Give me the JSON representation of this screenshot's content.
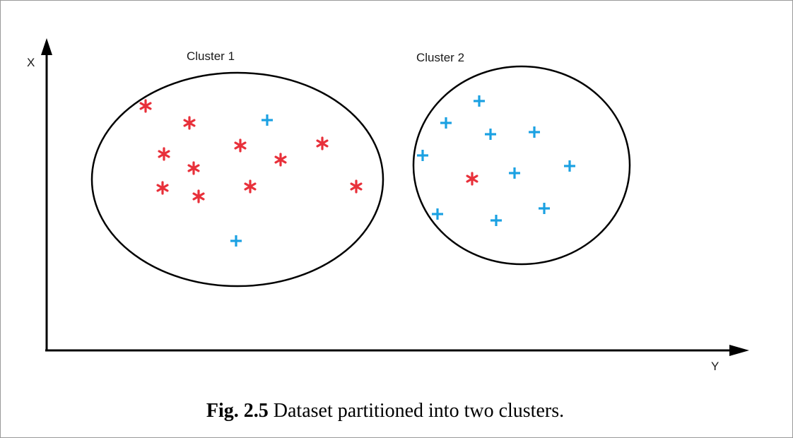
{
  "axes": {
    "x_label": "X",
    "y_label": "Y"
  },
  "clusters": [
    {
      "label": "Cluster 1",
      "points": [
        {
          "type": "star"
        },
        {
          "type": "star"
        },
        {
          "type": "plus"
        },
        {
          "type": "star"
        },
        {
          "type": "star"
        },
        {
          "type": "star"
        },
        {
          "type": "star"
        },
        {
          "type": "star"
        },
        {
          "type": "star"
        },
        {
          "type": "star"
        },
        {
          "type": "star"
        },
        {
          "type": "star"
        },
        {
          "type": "plus"
        }
      ]
    },
    {
      "label": "Cluster 2",
      "points": [
        {
          "type": "plus"
        },
        {
          "type": "plus"
        },
        {
          "type": "plus"
        },
        {
          "type": "plus"
        },
        {
          "type": "plus"
        },
        {
          "type": "plus"
        },
        {
          "type": "plus"
        },
        {
          "type": "star"
        },
        {
          "type": "plus"
        },
        {
          "type": "plus"
        },
        {
          "type": "plus"
        }
      ]
    }
  ],
  "colors": {
    "star": "#e8303a",
    "plus": "#1ba1e2",
    "outline": "#000000"
  },
  "caption": {
    "number": "Fig. 2.5",
    "text": " Dataset partitioned into two clusters."
  }
}
